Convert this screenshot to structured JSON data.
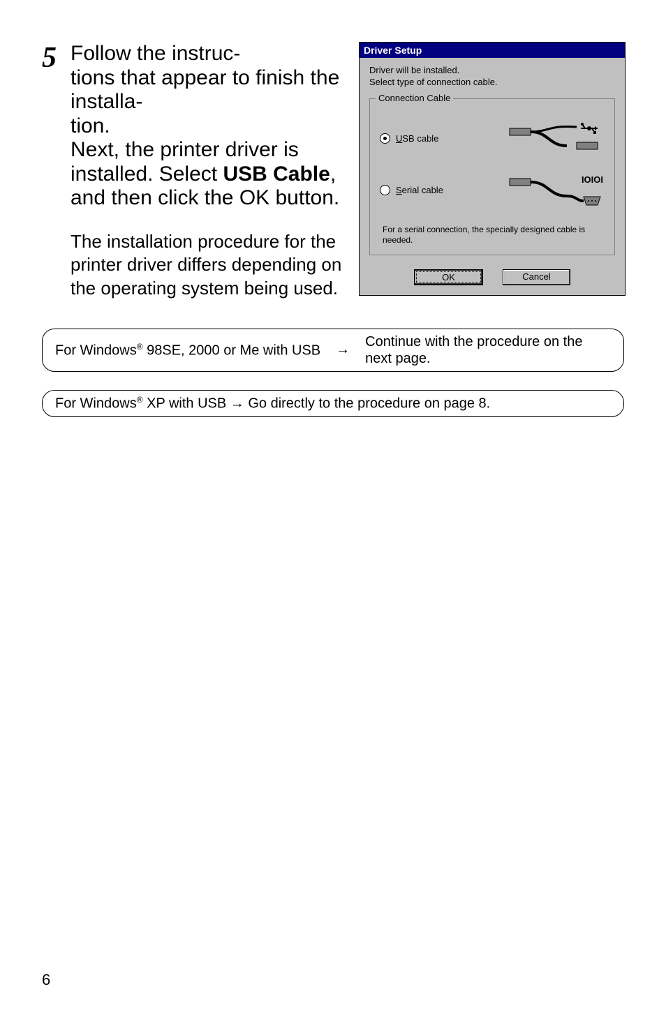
{
  "step": {
    "number": "5",
    "main_html": "Follow the instructions that appear to finish the installation.\nNext, the printer driver is installed. Select <b>USB Cable</b>, and then click the OK button.",
    "sub": "The installation procedure for the printer driver differs depending on the operating system being used."
  },
  "dialog": {
    "title": "Driver Setup",
    "desc_line1": "Driver will be installed.",
    "desc_line2": "Select type of connection cable.",
    "groupbox_label": "Connection Cable",
    "radio_usb": {
      "label_prefix": "U",
      "label_rest": "SB cable",
      "selected": true
    },
    "radio_serial": {
      "label_prefix": "S",
      "label_rest": "erial cable",
      "selected": false
    },
    "serial_port_label": "IOIOI",
    "note": "For a serial connection, the specially designed cable is needed.",
    "ok": "OK",
    "cancel": "Cancel",
    "colors": {
      "titlebar_bg": "#000080",
      "titlebar_fg": "#ffffff",
      "dialog_bg": "#c0c0c0",
      "border": "#000000"
    }
  },
  "callout1": {
    "left_html": "For Windows<sup>®</sup> 98SE, 2000 or Me with USB",
    "arrow": "→",
    "right": "Continue with the procedure on the next page."
  },
  "callout2": {
    "text_html": "For Windows<sup>®</sup> XP with USB → Go directly to the procedure on page 8."
  },
  "page_number": "6"
}
